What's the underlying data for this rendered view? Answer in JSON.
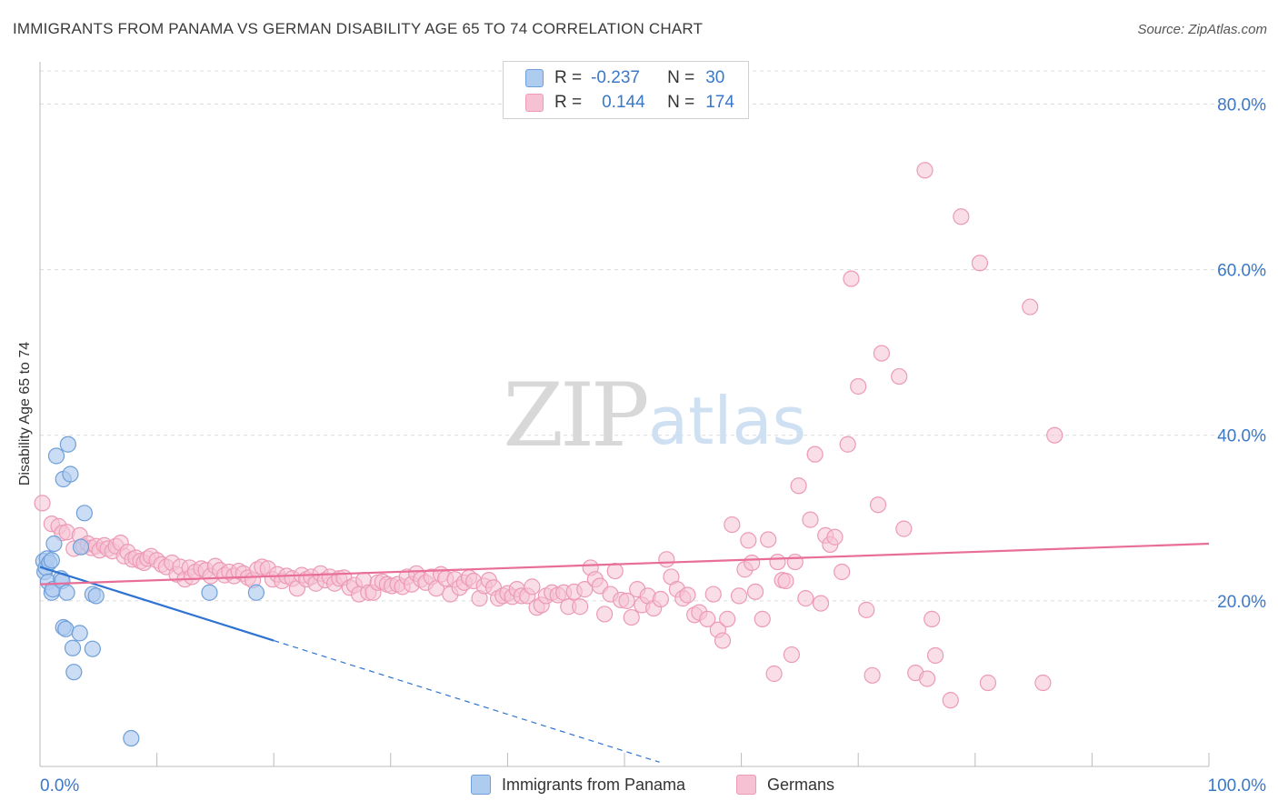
{
  "header": {
    "title": "IMMIGRANTS FROM PANAMA VS GERMAN DISABILITY AGE 65 TO 74 CORRELATION CHART",
    "source": "Source: ZipAtlas.com"
  },
  "legend": {
    "r_label": "R =",
    "n_label": "N =",
    "series1": {
      "r": "-0.237",
      "n": "30"
    },
    "series2": {
      "r": "0.144",
      "n": "174"
    }
  },
  "bottom_legend": {
    "series1": "Immigrants from Panama",
    "series2": "Germans"
  },
  "colors": {
    "blue_fill": "#aecbf0",
    "blue_stroke": "#6f9fd8",
    "blue_line": "#2e73d2",
    "pink_fill": "#f6c2d3",
    "pink_stroke": "#ec9ab5",
    "pink_line": "#e86e98",
    "tick_text": "#3a78c8"
  },
  "chart_data": {
    "type": "scatter",
    "title": "IMMIGRANTS FROM PANAMA VS GERMAN DISABILITY AGE 65 TO 74 CORRELATION CHART",
    "xlabel": "",
    "ylabel": "Disability Age 65 to 74",
    "xlim": [
      0,
      100
    ],
    "ylim": [
      0,
      84
    ],
    "x_tick_labels": [
      "0.0%",
      "100.0%"
    ],
    "y_ticks": [
      20,
      40,
      60,
      80
    ],
    "y_tick_labels": [
      "20.0%",
      "40.0%",
      "60.0%",
      "80.0%"
    ],
    "watermark": {
      "zip": "ZIP",
      "atlas": "atlas"
    },
    "series": [
      {
        "name": "Immigrants from Panama",
        "r": -0.237,
        "n": 30,
        "trend": {
          "x0": 0,
          "y0": 24.1,
          "x1": 20,
          "y1": 15.2,
          "dash_to_x": 53
        },
        "points": [
          [
            0.3,
            24.8
          ],
          [
            0.4,
            23.5
          ],
          [
            0.5,
            24.0
          ],
          [
            0.6,
            25.1
          ],
          [
            0.8,
            24.6
          ],
          [
            1.0,
            24.9
          ],
          [
            0.7,
            22.3
          ],
          [
            1.0,
            21.0
          ],
          [
            1.1,
            21.4
          ],
          [
            1.2,
            26.9
          ],
          [
            1.4,
            37.5
          ],
          [
            1.8,
            22.7
          ],
          [
            1.9,
            22.4
          ],
          [
            2.0,
            34.7
          ],
          [
            2.0,
            16.8
          ],
          [
            2.2,
            16.6
          ],
          [
            2.3,
            21.0
          ],
          [
            2.4,
            38.9
          ],
          [
            2.6,
            35.3
          ],
          [
            2.8,
            14.3
          ],
          [
            2.9,
            11.4
          ],
          [
            3.4,
            16.1
          ],
          [
            3.5,
            26.5
          ],
          [
            3.8,
            30.6
          ],
          [
            4.5,
            14.2
          ],
          [
            4.5,
            20.8
          ],
          [
            4.8,
            20.6
          ],
          [
            7.8,
            3.4
          ],
          [
            14.5,
            21.0
          ],
          [
            18.5,
            21.0
          ]
        ]
      },
      {
        "name": "Germans",
        "r": 0.144,
        "n": 174,
        "trend": {
          "x0": 0,
          "y0": 22.0,
          "x1": 100,
          "y1": 26.9
        },
        "points": [
          [
            0.2,
            31.8
          ],
          [
            1.0,
            29.3
          ],
          [
            1.6,
            29.0
          ],
          [
            1.9,
            28.2
          ],
          [
            2.3,
            28.3
          ],
          [
            2.9,
            26.3
          ],
          [
            3.4,
            27.9
          ],
          [
            3.7,
            26.6
          ],
          [
            4.1,
            26.9
          ],
          [
            4.4,
            26.4
          ],
          [
            4.8,
            26.6
          ],
          [
            5.1,
            26.1
          ],
          [
            5.5,
            26.7
          ],
          [
            5.8,
            26.3
          ],
          [
            6.2,
            26.0
          ],
          [
            6.5,
            26.6
          ],
          [
            6.9,
            27.0
          ],
          [
            7.2,
            25.4
          ],
          [
            7.5,
            25.9
          ],
          [
            7.9,
            25.0
          ],
          [
            8.2,
            25.2
          ],
          [
            8.6,
            24.8
          ],
          [
            8.9,
            24.6
          ],
          [
            9.2,
            25.1
          ],
          [
            9.5,
            25.4
          ],
          [
            10.0,
            24.9
          ],
          [
            10.4,
            24.4
          ],
          [
            10.8,
            24.1
          ],
          [
            11.3,
            24.6
          ],
          [
            11.7,
            23.2
          ],
          [
            12.0,
            24.1
          ],
          [
            12.4,
            22.6
          ],
          [
            12.8,
            24.0
          ],
          [
            13.0,
            22.9
          ],
          [
            13.3,
            23.5
          ],
          [
            13.8,
            23.9
          ],
          [
            14.2,
            23.7
          ],
          [
            14.6,
            23.0
          ],
          [
            15.0,
            24.2
          ],
          [
            15.4,
            23.7
          ],
          [
            15.8,
            23.1
          ],
          [
            16.2,
            23.5
          ],
          [
            16.6,
            23.0
          ],
          [
            17.0,
            23.6
          ],
          [
            17.4,
            23.3
          ],
          [
            17.8,
            22.8
          ],
          [
            18.2,
            22.5
          ],
          [
            18.6,
            23.8
          ],
          [
            19.0,
            24.1
          ],
          [
            19.5,
            23.9
          ],
          [
            19.9,
            22.6
          ],
          [
            20.3,
            23.2
          ],
          [
            20.7,
            22.4
          ],
          [
            21.1,
            23.0
          ],
          [
            21.6,
            22.7
          ],
          [
            22.0,
            21.5
          ],
          [
            22.4,
            23.1
          ],
          [
            22.8,
            22.6
          ],
          [
            23.2,
            22.9
          ],
          [
            23.6,
            22.1
          ],
          [
            24.0,
            23.3
          ],
          [
            24.4,
            22.5
          ],
          [
            24.8,
            22.9
          ],
          [
            25.2,
            22.1
          ],
          [
            25.6,
            22.7
          ],
          [
            26.0,
            22.8
          ],
          [
            26.5,
            21.6
          ],
          [
            26.9,
            21.9
          ],
          [
            27.3,
            20.8
          ],
          [
            27.7,
            22.5
          ],
          [
            28.1,
            21.0
          ],
          [
            28.5,
            21.0
          ],
          [
            28.9,
            22.2
          ],
          [
            29.3,
            22.3
          ],
          [
            29.7,
            22.0
          ],
          [
            30.1,
            21.8
          ],
          [
            30.6,
            22.0
          ],
          [
            31.0,
            21.7
          ],
          [
            31.4,
            22.9
          ],
          [
            31.8,
            22.0
          ],
          [
            32.2,
            23.3
          ],
          [
            32.6,
            22.6
          ],
          [
            33.0,
            22.2
          ],
          [
            33.5,
            22.9
          ],
          [
            33.9,
            21.5
          ],
          [
            34.3,
            23.2
          ],
          [
            34.7,
            22.7
          ],
          [
            35.1,
            20.8
          ],
          [
            35.5,
            22.6
          ],
          [
            35.9,
            21.6
          ],
          [
            36.3,
            22.2
          ],
          [
            36.7,
            22.8
          ],
          [
            37.1,
            22.4
          ],
          [
            37.6,
            20.3
          ],
          [
            38.0,
            21.8
          ],
          [
            38.4,
            22.5
          ],
          [
            38.8,
            21.6
          ],
          [
            39.2,
            20.3
          ],
          [
            39.6,
            20.6
          ],
          [
            40.0,
            20.9
          ],
          [
            40.4,
            20.5
          ],
          [
            40.8,
            21.4
          ],
          [
            41.2,
            20.6
          ],
          [
            41.7,
            20.6
          ],
          [
            42.1,
            21.7
          ],
          [
            42.5,
            19.2
          ],
          [
            42.9,
            19.5
          ],
          [
            43.3,
            20.6
          ],
          [
            43.8,
            21.0
          ],
          [
            44.3,
            20.7
          ],
          [
            44.8,
            21.0
          ],
          [
            45.2,
            19.3
          ],
          [
            45.7,
            21.1
          ],
          [
            46.2,
            19.3
          ],
          [
            46.6,
            21.4
          ],
          [
            47.1,
            24.0
          ],
          [
            47.5,
            22.6
          ],
          [
            47.9,
            21.8
          ],
          [
            48.3,
            18.4
          ],
          [
            48.8,
            20.8
          ],
          [
            49.2,
            23.6
          ],
          [
            49.7,
            20.1
          ],
          [
            50.2,
            20.0
          ],
          [
            50.6,
            18.0
          ],
          [
            51.1,
            21.4
          ],
          [
            51.5,
            19.5
          ],
          [
            52.0,
            20.6
          ],
          [
            52.5,
            19.1
          ],
          [
            53.1,
            20.2
          ],
          [
            53.6,
            25.0
          ],
          [
            54.0,
            22.9
          ],
          [
            54.5,
            21.4
          ],
          [
            55.0,
            20.3
          ],
          [
            55.4,
            20.7
          ],
          [
            56.0,
            18.3
          ],
          [
            56.4,
            18.6
          ],
          [
            57.1,
            17.8
          ],
          [
            57.6,
            20.8
          ],
          [
            58.0,
            16.5
          ],
          [
            58.4,
            15.2
          ],
          [
            58.8,
            17.8
          ],
          [
            59.2,
            29.2
          ],
          [
            59.8,
            20.6
          ],
          [
            60.3,
            23.8
          ],
          [
            60.6,
            27.3
          ],
          [
            60.9,
            24.6
          ],
          [
            61.2,
            21.1
          ],
          [
            61.8,
            17.8
          ],
          [
            62.3,
            27.4
          ],
          [
            62.8,
            11.2
          ],
          [
            63.1,
            24.7
          ],
          [
            63.5,
            22.5
          ],
          [
            63.8,
            22.4
          ],
          [
            64.3,
            13.5
          ],
          [
            64.6,
            24.7
          ],
          [
            64.9,
            33.9
          ],
          [
            65.5,
            20.3
          ],
          [
            65.9,
            29.8
          ],
          [
            66.3,
            37.7
          ],
          [
            66.8,
            19.7
          ],
          [
            67.2,
            27.9
          ],
          [
            67.6,
            26.8
          ],
          [
            68.0,
            27.7
          ],
          [
            68.6,
            23.5
          ],
          [
            69.1,
            38.9
          ],
          [
            69.4,
            58.9
          ],
          [
            70.0,
            45.9
          ],
          [
            70.7,
            18.9
          ],
          [
            71.2,
            11.0
          ],
          [
            71.7,
            31.6
          ],
          [
            72.0,
            49.9
          ],
          [
            73.5,
            47.1
          ],
          [
            73.9,
            28.7
          ],
          [
            74.9,
            11.3
          ],
          [
            75.7,
            72.0
          ],
          [
            75.9,
            10.6
          ],
          [
            76.3,
            17.8
          ],
          [
            76.6,
            13.4
          ],
          [
            77.9,
            8.0
          ],
          [
            78.8,
            66.4
          ],
          [
            80.4,
            60.8
          ],
          [
            81.1,
            10.1
          ],
          [
            84.7,
            55.5
          ],
          [
            85.8,
            10.1
          ],
          [
            86.8,
            40.0
          ]
        ]
      }
    ]
  }
}
